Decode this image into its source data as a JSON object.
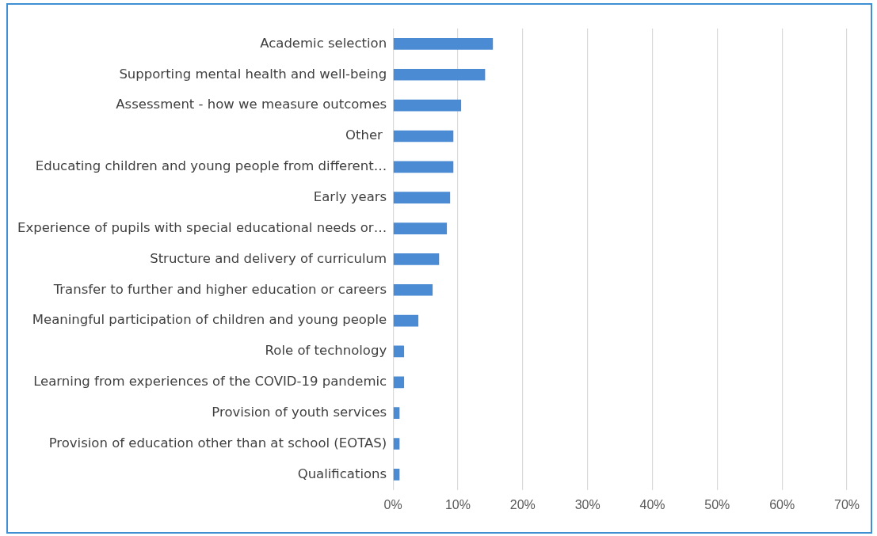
{
  "chart_data": {
    "type": "bar",
    "orientation": "horizontal",
    "categories": [
      "Academic selection",
      "Supporting mental health and well-being",
      "Assessment - how we measure outcomes",
      "Other ",
      "Educating children and young people from different…",
      "Early years",
      "Experience of pupils with special educational needs or…",
      "Structure and delivery of curriculum",
      "Transfer to further and higher education or careers",
      "Meaningful participation of children and young people",
      "Role of technology",
      "Learning from experiences of the COVID-19 pandemic",
      "Provision of youth services",
      "Provision of education other than at school (EOTAS)",
      "Qualifications"
    ],
    "values": [
      15.4,
      14.2,
      10.5,
      9.3,
      9.3,
      8.8,
      8.3,
      7.1,
      6.1,
      3.9,
      1.7,
      1.7,
      1.0,
      1.0,
      1.0
    ],
    "color": "#4a8bd4",
    "xlim": [
      0,
      70
    ],
    "xticks": [
      {
        "value": 0,
        "label": "0%"
      },
      {
        "value": 10,
        "label": "10%"
      },
      {
        "value": 20,
        "label": "20%"
      },
      {
        "value": 30,
        "label": "30%"
      },
      {
        "value": 40,
        "label": "40%"
      },
      {
        "value": 50,
        "label": "50%"
      },
      {
        "value": 60,
        "label": "60%"
      },
      {
        "value": 70,
        "label": "70%"
      }
    ],
    "grid": "x",
    "legend": false
  }
}
